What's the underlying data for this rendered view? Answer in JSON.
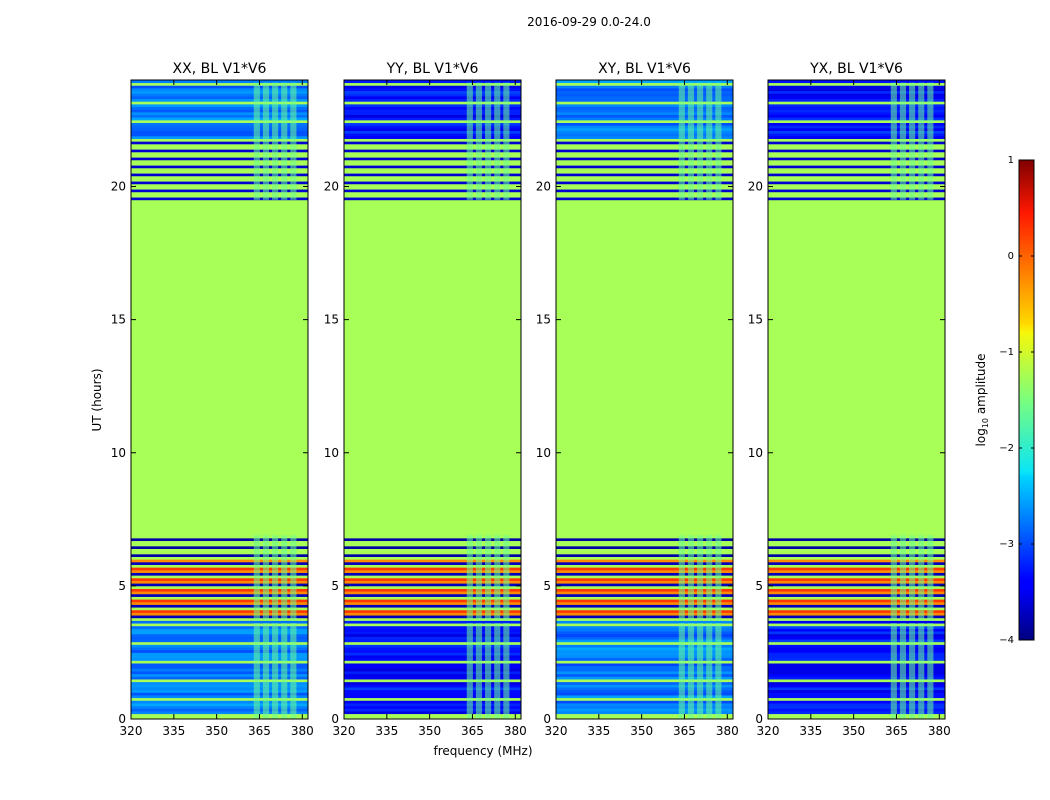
{
  "chart_data": {
    "type": "heatmap",
    "suptitle": "2016-09-29 0.0-24.0",
    "xlabel": "frequency (MHz)",
    "ylabel": "UT (hours)",
    "xticks": [
      320,
      335,
      350,
      365,
      380
    ],
    "xlim": [
      320,
      382
    ],
    "yticks": [
      0,
      5,
      10,
      15,
      20
    ],
    "ylim": [
      0,
      24
    ],
    "colorbar": {
      "label_prefix": "log",
      "label_sub": "10",
      "label_suffix": " amplitude",
      "range": [
        -4,
        1
      ],
      "ticks": [
        -4,
        -3,
        -2,
        -1,
        0,
        1
      ],
      "tick_labels": [
        "−4",
        "−3",
        "−2",
        "−1",
        "0",
        "1"
      ],
      "colormap": "jet"
    },
    "flagged_block": {
      "start_hour": 7.0,
      "end_hour": 19.3,
      "log_amplitude": -1.3
    },
    "active_band_mhz": [
      363,
      382
    ],
    "panels": [
      {
        "title": "XX, BL V1*V6",
        "noise_level": -2.8
      },
      {
        "title": "YY, BL V1*V6",
        "noise_level": -3.3
      },
      {
        "title": "XY, BL V1*V6",
        "noise_level": -2.8
      },
      {
        "title": "YX, BL V1*V6",
        "noise_level": -3.3
      }
    ]
  }
}
